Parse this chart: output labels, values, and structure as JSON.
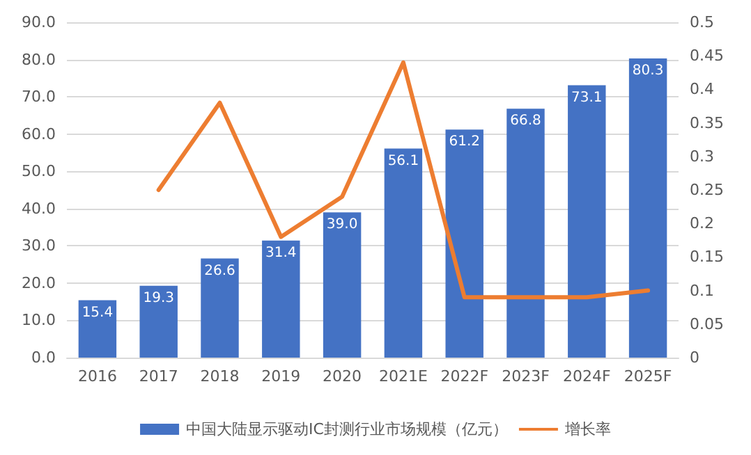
{
  "chart_data": {
    "type": "bar",
    "categories": [
      "2016",
      "2017",
      "2018",
      "2019",
      "2020",
      "2021E",
      "2022F",
      "2023F",
      "2024F",
      "2025F"
    ],
    "series": [
      {
        "name": "中国大陆显示驱动IC封测行业市场规模（亿元）",
        "color": "#4472c4",
        "values": [
          15.4,
          19.3,
          26.6,
          31.4,
          39.0,
          56.1,
          61.2,
          66.8,
          73.1,
          80.3
        ],
        "value_labels": [
          "15.4",
          "19.3",
          "26.6",
          "31.4",
          "39.0",
          "56.1",
          "61.2",
          "66.8",
          "73.1",
          "80.3"
        ]
      },
      {
        "name": "增长率",
        "type": "line",
        "axis": "y2",
        "color": "#ed7d31",
        "values": [
          null,
          0.25,
          0.38,
          0.18,
          0.24,
          0.44,
          0.09,
          0.09,
          0.09,
          0.1
        ]
      }
    ],
    "ylim": [
      0,
      90
    ],
    "yticks": [
      {
        "value": 0,
        "label": "0.0"
      },
      {
        "value": 10,
        "label": "10.0"
      },
      {
        "value": 20,
        "label": "20.0"
      },
      {
        "value": 30,
        "label": "30.0"
      },
      {
        "value": 40,
        "label": "40.0"
      },
      {
        "value": 50,
        "label": "50.0"
      },
      {
        "value": 60,
        "label": "60.0"
      },
      {
        "value": 70,
        "label": "70.0"
      },
      {
        "value": 80,
        "label": "80.0"
      },
      {
        "value": 90,
        "label": "90.0"
      }
    ],
    "y2lim": [
      0,
      0.5
    ],
    "y2ticks": [
      0,
      0.05,
      0.1,
      0.15,
      0.2,
      0.25,
      0.3,
      0.35,
      0.4,
      0.45,
      0.5
    ],
    "grid": "y",
    "legend": "bottom",
    "marker": "none",
    "line_style": "solid"
  }
}
